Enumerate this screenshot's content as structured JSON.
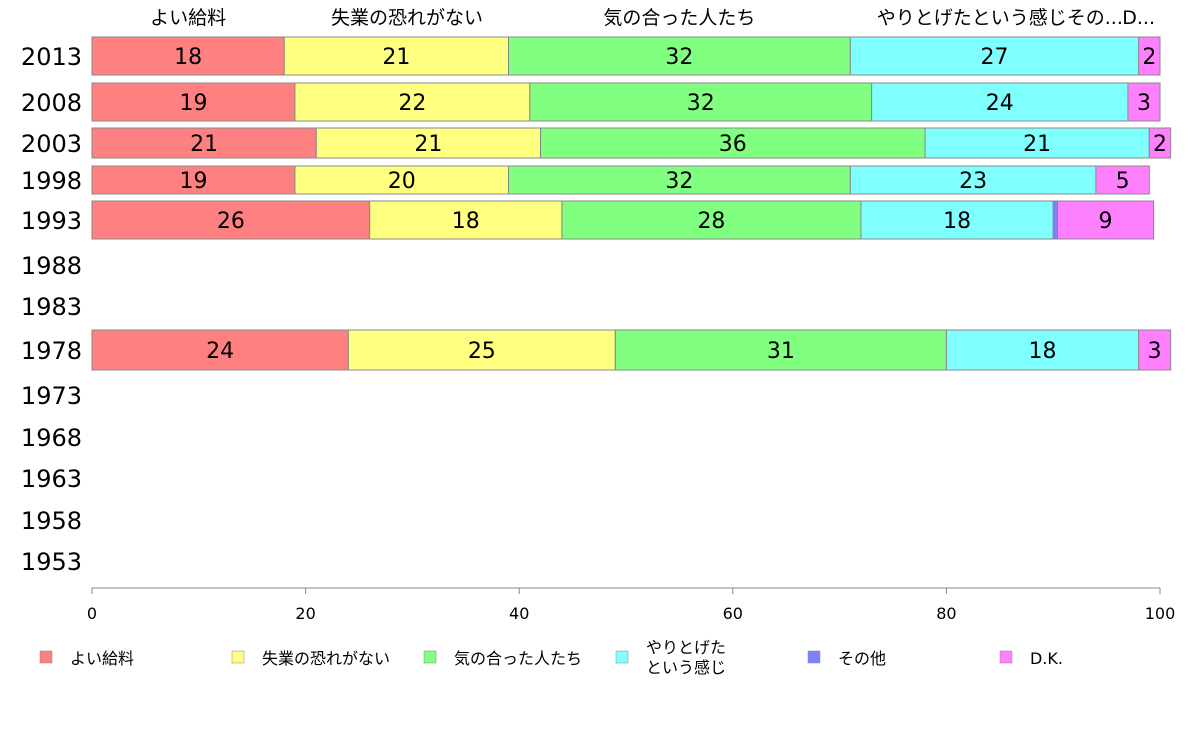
{
  "chart_data": {
    "type": "bar",
    "orientation": "horizontal",
    "stacked": true,
    "xlim": [
      0,
      100
    ],
    "x_ticks": [
      "0",
      "20",
      "40",
      "60",
      "80",
      "100"
    ],
    "categories": [
      "2013",
      "2008",
      "2003",
      "1998",
      "1993",
      "1988",
      "1983",
      "1978",
      "1973",
      "1968",
      "1963",
      "1958",
      "1953"
    ],
    "series": [
      {
        "name": "よい給料",
        "color": "#ff8080",
        "values": [
          18,
          19,
          21,
          19,
          26,
          null,
          null,
          24,
          null,
          null,
          null,
          null,
          null
        ],
        "labels": [
          "18",
          "19",
          "21",
          "19",
          "26",
          "",
          "",
          "24",
          "",
          "",
          "",
          "",
          ""
        ]
      },
      {
        "name": "失業の恐れがない",
        "color": "#ffff80",
        "values": [
          21,
          22,
          21,
          20,
          18,
          null,
          null,
          25,
          null,
          null,
          null,
          null,
          null
        ],
        "labels": [
          "21",
          "22",
          "21",
          "20",
          "18",
          "",
          "",
          "25",
          "",
          "",
          "",
          "",
          ""
        ]
      },
      {
        "name": "気の合った人たち",
        "color": "#80ff80",
        "values": [
          32,
          32,
          36,
          32,
          28,
          null,
          null,
          31,
          null,
          null,
          null,
          null,
          null
        ],
        "labels": [
          "32",
          "32",
          "36",
          "32",
          "28",
          "",
          "",
          "31",
          "",
          "",
          "",
          "",
          ""
        ]
      },
      {
        "name": "やりとげたという感じ",
        "color": "#80ffff",
        "values": [
          27,
          24,
          21,
          23,
          18,
          null,
          null,
          18,
          null,
          null,
          null,
          null,
          null
        ],
        "labels": [
          "27",
          "24",
          "21",
          "23",
          "18",
          "",
          "",
          "18",
          "",
          "",
          "",
          "",
          ""
        ]
      },
      {
        "name": "その他",
        "color": "#8080ff",
        "values": [
          0,
          0,
          0,
          0,
          0.4,
          null,
          null,
          0,
          null,
          null,
          null,
          null,
          null
        ],
        "labels": [
          "",
          "",
          "",
          "",
          "",
          "",
          "",
          "",
          "",
          "",
          "",
          "",
          ""
        ]
      },
      {
        "name": "D.K.",
        "color": "#ff80ff",
        "values": [
          2,
          3,
          2,
          5,
          9,
          null,
          null,
          3,
          null,
          null,
          null,
          null,
          null
        ],
        "labels": [
          "2",
          "3",
          "2",
          "5",
          "9",
          "",
          "",
          "3",
          "",
          "",
          "",
          "",
          ""
        ]
      }
    ],
    "top_labels": [
      "よい給料",
      "失業の恐れがない",
      "気の合った人たち",
      "やりとげたという感じその...",
      "D..."
    ],
    "top_label_positions": [
      9,
      29.5,
      55,
      85,
      98
    ],
    "legend": [
      {
        "lines": [
          "よい給料"
        ],
        "color": "#ff8080"
      },
      {
        "lines": [
          "失業の恐れがない"
        ],
        "color": "#ffff80"
      },
      {
        "lines": [
          "気の合った人たち"
        ],
        "color": "#80ff80"
      },
      {
        "lines": [
          "やりとげた",
          "という感じ"
        ],
        "color": "#80ffff"
      },
      {
        "lines": [
          "その他"
        ],
        "color": "#8080ff"
      },
      {
        "lines": [
          "D.K."
        ],
        "color": "#ff80ff"
      }
    ],
    "legend_position": "bottom",
    "grid": false
  }
}
